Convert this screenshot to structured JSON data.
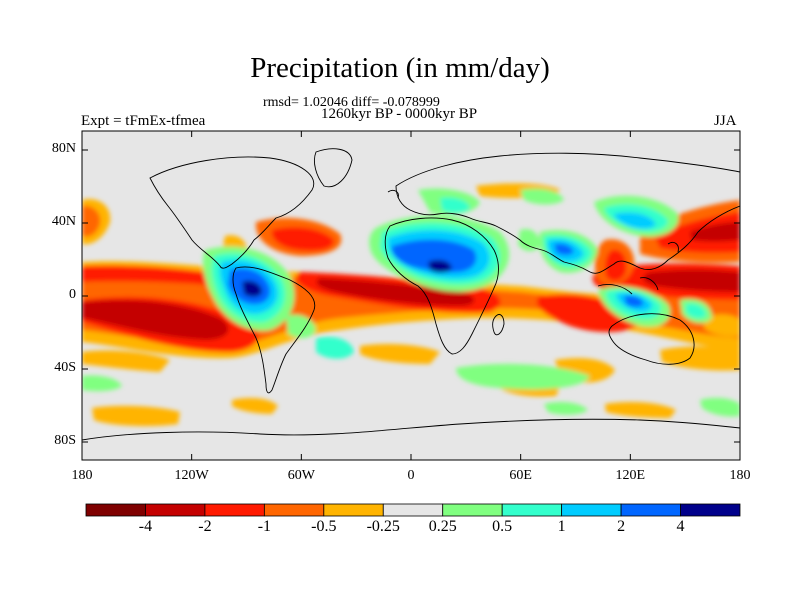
{
  "title": "Precipitation (in mm/day)",
  "stats": "rmsd= 1.02046 diff= -0.078999",
  "period": "1260kyr BP - 0000kyr BP",
  "expt": "Expt = tFmEx-tfmea",
  "season": "JJA",
  "lat_ticks": [
    "80N",
    "40N",
    "0",
    "40S",
    "80S"
  ],
  "lon_ticks": [
    "180",
    "120W",
    "60W",
    "0",
    "60E",
    "120E",
    "180"
  ],
  "colorbar": {
    "colors": [
      "#7f0000",
      "#c40000",
      "#ff1a00",
      "#ff6600",
      "#ffb400",
      "#e6e6e6",
      "#80ff80",
      "#33ffcc",
      "#00ccff",
      "#0066ff",
      "#00008b"
    ],
    "labels": [
      "-4",
      "-2",
      "-1",
      "-0.5",
      "-0.25",
      "0.25",
      "0.5",
      "1",
      "2",
      "4"
    ]
  }
}
